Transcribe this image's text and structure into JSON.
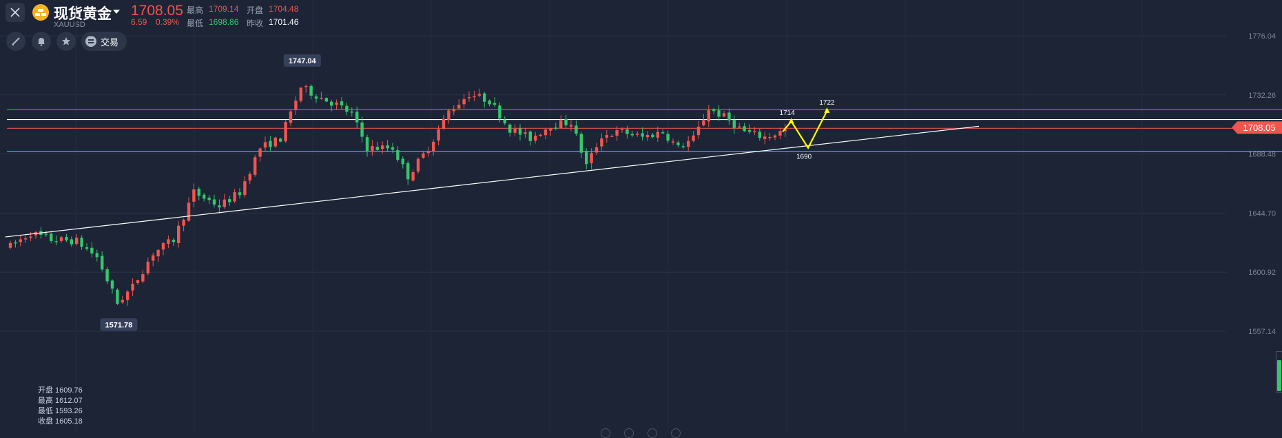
{
  "header": {
    "instrument_name": "现货黄金",
    "instrument_code": "XAUUSD",
    "last_price": "1708.05",
    "change": "6.59",
    "change_pct": "0.39%",
    "high_label": "最高",
    "high_value": "1709.14",
    "open_label": "开盘",
    "open_value": "1704.48",
    "low_label": "最低",
    "low_value": "1698.86",
    "prev_close_label": "昨收",
    "prev_close_value": "1701.46"
  },
  "toolbar": {
    "draw_icon": "pencil-icon",
    "alert_icon": "bell-icon",
    "favorite_icon": "star-icon",
    "trade_icon": "menu-circle-icon",
    "trade_label": "交易"
  },
  "colors": {
    "background": "#1c2436",
    "up": "#f2554e",
    "down": "#35c76b",
    "resistance_line": "#d9544f",
    "support_line": "#35b8d6",
    "trend_line": "#ffffff",
    "arrow": "#ffff00"
  },
  "chart_data": {
    "type": "candlestick",
    "symbol": "XAUUSD",
    "y_ticks": [
      1776.04,
      1732.26,
      1688.48,
      1644.7,
      1600.92,
      1557.14
    ],
    "ylim": [
      1537,
      1800
    ],
    "current_price": 1708.05,
    "current_price_label": "1708.05",
    "max_marker": {
      "value": 1747.04,
      "label": "1747.04"
    },
    "min_marker": {
      "value": 1571.78,
      "label": "1571.78"
    },
    "horizontal_lines": [
      {
        "value": 1721.5,
        "color": "#d9544f"
      },
      {
        "value": 1714.0,
        "color": "#ffffff"
      },
      {
        "value": 1707.5,
        "color": "#d9544f"
      },
      {
        "value": 1690.5,
        "color": "#35b8d6"
      }
    ],
    "trend_line": {
      "from": {
        "index": -1,
        "value": 1627.0
      },
      "to": {
        "index": 190,
        "value": 1709.0
      }
    },
    "projection": [
      {
        "index": 151.5,
        "value": 1705.0
      },
      {
        "index": 153.2,
        "value": 1712.7,
        "label": "1714"
      },
      {
        "index": 156.5,
        "value": 1693.0,
        "label": "1690"
      },
      {
        "index": 160.2,
        "value": 1720.4,
        "label": "1722"
      }
    ],
    "selected_bar": {
      "open_label": "开盘",
      "open": "1609.76",
      "high_label": "最高",
      "high": "1612.07",
      "low_label": "最低",
      "low": "1593.26",
      "close_label": "收盘",
      "close": "1605.18"
    },
    "anchors": [
      [
        0,
        1620
      ],
      [
        4,
        1630
      ],
      [
        8,
        1625
      ],
      [
        13,
        1624
      ],
      [
        17,
        1612
      ],
      [
        21,
        1578
      ],
      [
        24,
        1590
      ],
      [
        28,
        1615
      ],
      [
        32,
        1625
      ],
      [
        36,
        1660
      ],
      [
        41,
        1650
      ],
      [
        45,
        1660
      ],
      [
        49,
        1693
      ],
      [
        53,
        1700
      ],
      [
        57,
        1738
      ],
      [
        60,
        1732
      ],
      [
        64,
        1725
      ],
      [
        67,
        1718
      ],
      [
        70,
        1693
      ],
      [
        75,
        1693
      ],
      [
        78,
        1672
      ],
      [
        82,
        1693
      ],
      [
        86,
        1720
      ],
      [
        90,
        1733
      ],
      [
        94,
        1728
      ],
      [
        98,
        1707
      ],
      [
        102,
        1700
      ],
      [
        106,
        1710
      ],
      [
        110,
        1712
      ],
      [
        113,
        1680
      ],
      [
        116,
        1702
      ],
      [
        120,
        1705
      ],
      [
        124,
        1701
      ],
      [
        128,
        1705
      ],
      [
        131,
        1693
      ],
      [
        134,
        1700
      ],
      [
        137,
        1722
      ],
      [
        140,
        1716
      ],
      [
        144,
        1705
      ],
      [
        148,
        1701
      ],
      [
        152,
        1706
      ]
    ],
    "volume_level": 0.8
  }
}
